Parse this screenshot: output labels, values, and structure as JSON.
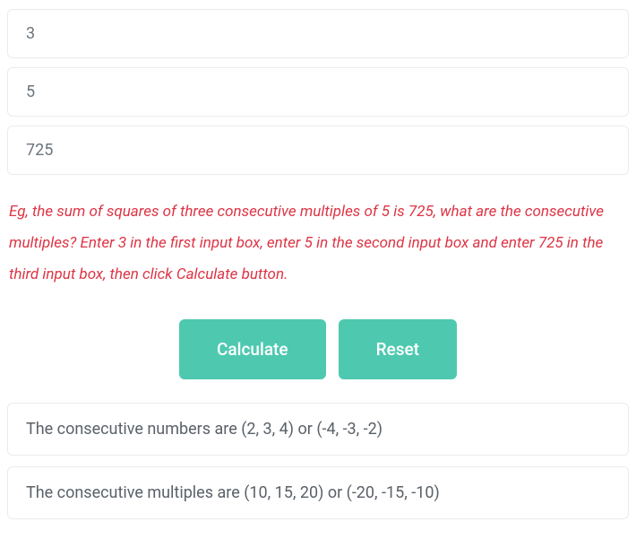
{
  "inputs": {
    "count": "3",
    "multiple_of": "5",
    "sum_of_squares": "725"
  },
  "hint": "Eg, the sum of squares of three consecutive multiples of 5 is 725, what are the consecutive multiples? Enter 3 in the first input box, enter 5 in the second input box and enter 725 in the third input box, then click Calculate button.",
  "buttons": {
    "calculate": "Calculate",
    "reset": "Reset"
  },
  "results": {
    "numbers": "The consecutive numbers are (2, 3, 4) or (-4, -3, -2)",
    "multiples": "The consecutive multiples are (10, 15, 20) or (-20, -15, -10)"
  },
  "colors": {
    "button_bg": "#4ec9b0",
    "button_text": "#ffffff",
    "hint_text": "#dc3545",
    "input_border": "#e8ecef",
    "input_text": "#6c757d",
    "result_text": "#5a6168",
    "background": "#ffffff"
  }
}
